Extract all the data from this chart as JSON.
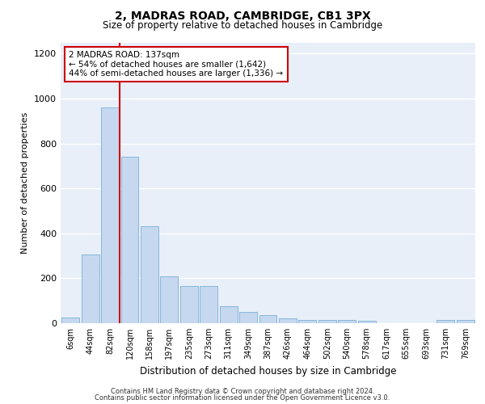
{
  "title": "2, MADRAS ROAD, CAMBRIDGE, CB1 3PX",
  "subtitle": "Size of property relative to detached houses in Cambridge",
  "xlabel": "Distribution of detached houses by size in Cambridge",
  "ylabel": "Number of detached properties",
  "categories": [
    "6sqm",
    "44sqm",
    "82sqm",
    "120sqm",
    "158sqm",
    "197sqm",
    "235sqm",
    "273sqm",
    "311sqm",
    "349sqm",
    "387sqm",
    "426sqm",
    "464sqm",
    "502sqm",
    "540sqm",
    "578sqm",
    "617sqm",
    "655sqm",
    "693sqm",
    "731sqm",
    "769sqm"
  ],
  "values": [
    25,
    305,
    960,
    740,
    430,
    210,
    165,
    165,
    75,
    50,
    35,
    20,
    15,
    15,
    15,
    10,
    0,
    0,
    0,
    15,
    15
  ],
  "bar_color": "#c5d8f0",
  "bar_edge_color": "#7aafd4",
  "vline_color": "#cc0000",
  "vline_x": 2.5,
  "annotation_text": "2 MADRAS ROAD: 137sqm\n← 54% of detached houses are smaller (1,642)\n44% of semi-detached houses are larger (1,336) →",
  "annotation_box_color": "#ffffff",
  "annotation_box_edge_color": "#cc0000",
  "ylim": [
    0,
    1250
  ],
  "yticks": [
    0,
    200,
    400,
    600,
    800,
    1000,
    1200
  ],
  "plot_bg_color": "#e8eff8",
  "grid_color": "#ffffff",
  "footer_line1": "Contains HM Land Registry data © Crown copyright and database right 2024.",
  "footer_line2": "Contains public sector information licensed under the Open Government Licence v3.0."
}
